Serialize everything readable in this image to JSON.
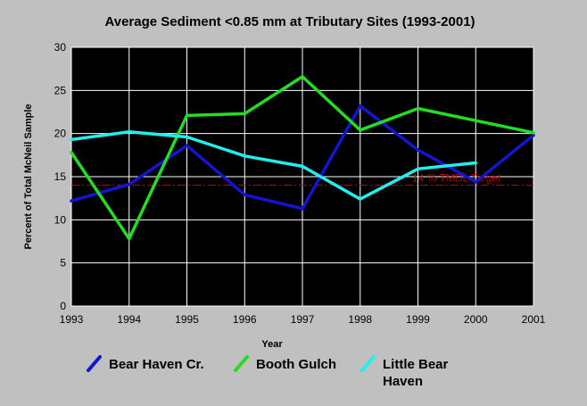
{
  "chart_data": {
    "type": "line",
    "title": "Average Sediment <0.85 mm at Tributary Sites (1993-2001)",
    "xlabel": "Year",
    "ylabel": "Percent of Total McNeil Sample",
    "xlim": [
      1993,
      2001
    ],
    "ylim": [
      0,
      30
    ],
    "x_ticks": [
      "1993",
      "1994",
      "1995",
      "1996",
      "1997",
      "1998",
      "1999",
      "2000",
      "2001"
    ],
    "y_ticks": [
      "0",
      "5",
      "10",
      "15",
      "20",
      "25",
      "30"
    ],
    "grid": true,
    "legend_position": "bottom",
    "series": [
      {
        "name": "Bear Haven Cr.",
        "color": "#1414d2",
        "points": [
          [
            1993,
            12.2
          ],
          [
            1994,
            14.1
          ],
          [
            1995,
            18.6
          ],
          [
            1996,
            12.9
          ],
          [
            1997,
            11.3
          ],
          [
            1998,
            23.2
          ],
          [
            1999,
            18.1
          ],
          [
            2000,
            14.4
          ],
          [
            2001,
            19.8
          ]
        ]
      },
      {
        "name": "Booth Gulch",
        "color": "#22dd22",
        "points": [
          [
            1993,
            17.8
          ],
          [
            1994,
            7.8
          ],
          [
            1995,
            22.1
          ],
          [
            1996,
            22.3
          ],
          [
            1997,
            26.6
          ],
          [
            1998,
            20.4
          ],
          [
            1999,
            22.9
          ],
          [
            2001,
            20.1
          ]
        ]
      },
      {
        "name": "Little Bear Haven",
        "legend_lines": [
          "Little Bear",
          "Haven"
        ],
        "color": "#22eeee",
        "points": [
          [
            1993,
            19.3
          ],
          [
            1994,
            20.2
          ],
          [
            1995,
            19.6
          ],
          [
            1996,
            17.4
          ],
          [
            1997,
            16.2
          ],
          [
            1998,
            12.4
          ],
          [
            1999,
            15.9
          ],
          [
            2000,
            16.6
          ]
        ]
      }
    ],
    "reference_line": {
      "value": 14,
      "label": "14 % TMDL Target",
      "color": "#cc0000"
    }
  }
}
